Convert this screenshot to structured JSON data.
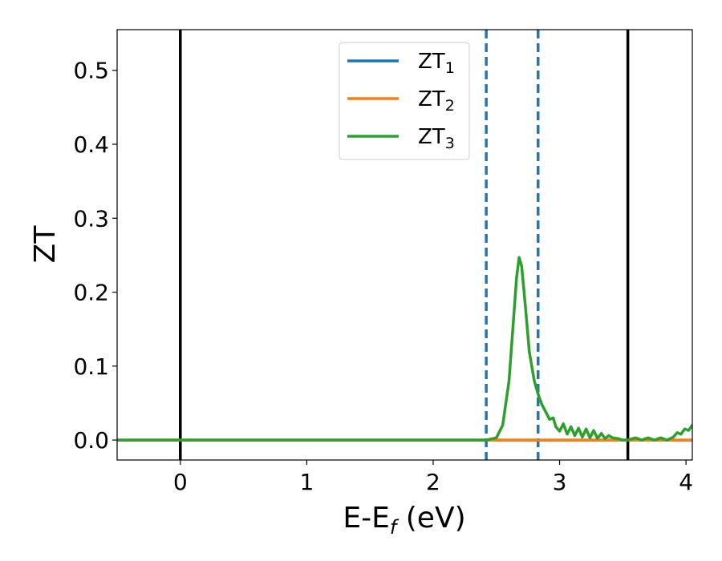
{
  "chart_data": {
    "type": "line",
    "title": "",
    "xlabel": {
      "main": "E-E",
      "sub": "f",
      "suffix": " (eV)"
    },
    "ylabel": "ZT",
    "xlim": [
      -0.5,
      4.05
    ],
    "ylim": [
      -0.027,
      0.555
    ],
    "xticks": [
      0,
      1,
      2,
      3,
      4
    ],
    "xtick_labels": [
      "0",
      "1",
      "2",
      "3",
      "4"
    ],
    "yticks": [
      0.0,
      0.1,
      0.2,
      0.3,
      0.4,
      0.5
    ],
    "ytick_labels": [
      "0.0",
      "0.1",
      "0.2",
      "0.3",
      "0.4",
      "0.5"
    ],
    "grid": false,
    "legend_position": "top-center",
    "vertical_lines": [
      {
        "x": 0.0,
        "style": "solid",
        "color": "#000000"
      },
      {
        "x": 3.54,
        "style": "solid",
        "color": "#000000"
      },
      {
        "x": 2.42,
        "style": "dashed",
        "color": "#1f77b4"
      },
      {
        "x": 2.83,
        "style": "dashed",
        "color": "#1f77b4"
      }
    ],
    "series": [
      {
        "name": "ZT",
        "sub": "1",
        "color": "#1f77b4",
        "x": [
          -0.5,
          4.05
        ],
        "y": [
          0.0,
          0.0
        ]
      },
      {
        "name": "ZT",
        "sub": "2",
        "color": "#ff7f0e",
        "x": [
          -0.5,
          4.05
        ],
        "y": [
          0.0,
          0.0
        ]
      },
      {
        "name": "ZT",
        "sub": "3",
        "color": "#2ca02c",
        "x": [
          -0.5,
          2.42,
          2.5,
          2.55,
          2.6,
          2.63,
          2.66,
          2.68,
          2.7,
          2.73,
          2.76,
          2.8,
          2.83,
          2.86,
          2.9,
          2.92,
          2.95,
          2.97,
          3.0,
          3.03,
          3.06,
          3.09,
          3.12,
          3.15,
          3.18,
          3.21,
          3.24,
          3.27,
          3.3,
          3.33,
          3.36,
          3.39,
          3.42,
          3.46,
          3.5,
          3.54,
          3.6,
          3.65,
          3.7,
          3.75,
          3.8,
          3.85,
          3.9,
          3.93,
          3.96,
          3.99,
          4.02,
          4.05
        ],
        "y": [
          0.0,
          0.0,
          0.003,
          0.02,
          0.08,
          0.15,
          0.22,
          0.247,
          0.235,
          0.18,
          0.12,
          0.08,
          0.062,
          0.048,
          0.035,
          0.028,
          0.03,
          0.018,
          0.012,
          0.022,
          0.008,
          0.018,
          0.006,
          0.016,
          0.004,
          0.015,
          0.003,
          0.013,
          0.002,
          0.009,
          0.002,
          0.006,
          0.003,
          0.002,
          0.0,
          0.0,
          0.003,
          0.0,
          0.003,
          0.0,
          0.003,
          0.0,
          0.004,
          0.01,
          0.008,
          0.015,
          0.013,
          0.02
        ]
      }
    ]
  }
}
